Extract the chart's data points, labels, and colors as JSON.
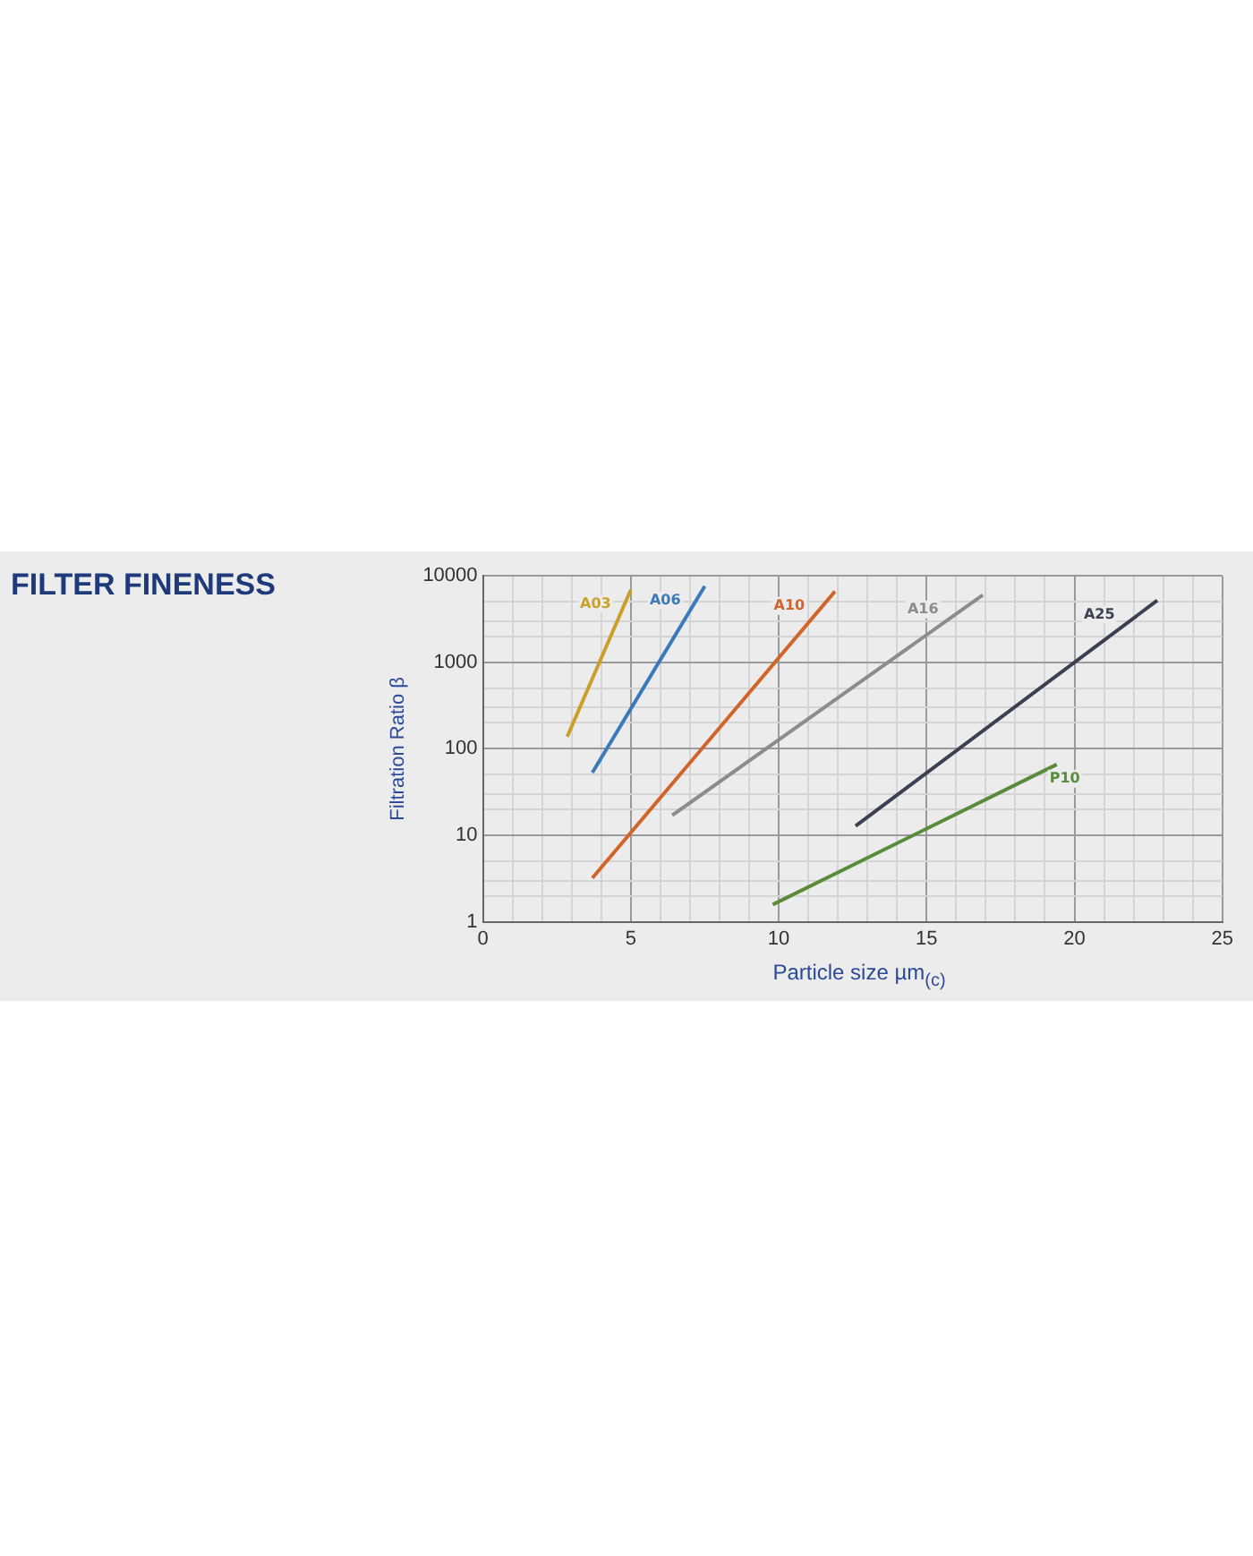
{
  "chart_data": {
    "type": "line",
    "title": "FILTER FINENESS",
    "xlabel": "Particle size µm$_{(c)}$",
    "ylabel": "Filtration Ratio β",
    "log": "y",
    "grid": true,
    "legend": false,
    "marker": "none",
    "line_style": "solid",
    "xlim": [
      0,
      25
    ],
    "ylim": [
      1,
      10000
    ],
    "xticks": [
      0,
      {
        "value": 1,
        "label": null
      },
      {
        "value": 2,
        "label": null
      },
      {
        "value": 3,
        "label": null
      },
      {
        "value": 4,
        "label": null
      },
      5,
      {
        "value": 6,
        "label": null
      },
      {
        "value": 7,
        "label": null
      },
      {
        "value": 8,
        "label": null
      },
      {
        "value": 9,
        "label": null
      },
      10,
      {
        "value": 11,
        "label": null
      },
      {
        "value": 12,
        "label": null
      },
      {
        "value": 13,
        "label": null
      },
      {
        "value": 14,
        "label": null
      },
      15,
      {
        "value": 16,
        "label": null
      },
      {
        "value": 17,
        "label": null
      },
      {
        "value": 18,
        "label": null
      },
      {
        "value": 19,
        "label": null
      },
      20,
      {
        "value": 21,
        "label": null
      },
      {
        "value": 22,
        "label": null
      },
      {
        "value": 23,
        "label": null
      },
      {
        "value": 24,
        "label": null
      },
      25
    ],
    "yticks": [
      1,
      {
        "value": 2,
        "label": null
      },
      {
        "value": 3,
        "label": null
      },
      {
        "value": 5,
        "label": null
      },
      10,
      {
        "value": 20,
        "label": null
      },
      {
        "value": 30,
        "label": null
      },
      {
        "value": 50,
        "label": null
      },
      100,
      {
        "value": 200,
        "label": null
      },
      {
        "value": 300,
        "label": null
      },
      {
        "value": 500,
        "label": null
      },
      1000,
      {
        "value": 2000,
        "label": null
      },
      {
        "value": 3000,
        "label": null
      },
      {
        "value": 5000,
        "label": null
      },
      10000
    ],
    "series": [
      {
        "name": "A03",
        "color": "#c9a02a",
        "x": [
          2.85,
          5.0
        ],
        "values": [
          138,
          6900
        ]
      },
      {
        "name": "A06",
        "color": "#3a7ab8",
        "x": [
          3.7,
          7.5
        ],
        "values": [
          53,
          7600
        ]
      },
      {
        "name": "A10",
        "color": "#d2642a",
        "x": [
          3.7,
          11.9
        ],
        "values": [
          3.2,
          6600
        ]
      },
      {
        "name": "A16",
        "color": "#8c8c8c",
        "x": [
          6.4,
          16.9
        ],
        "values": [
          17,
          6000
        ]
      },
      {
        "name": "A25",
        "color": "#3a4150",
        "x": [
          12.6,
          22.8
        ],
        "values": [
          12.8,
          5200
        ]
      },
      {
        "name": "P10",
        "color": "#5a8a3c",
        "x": [
          9.8,
          19.4
        ],
        "values": [
          1.58,
          66
        ]
      }
    ]
  }
}
